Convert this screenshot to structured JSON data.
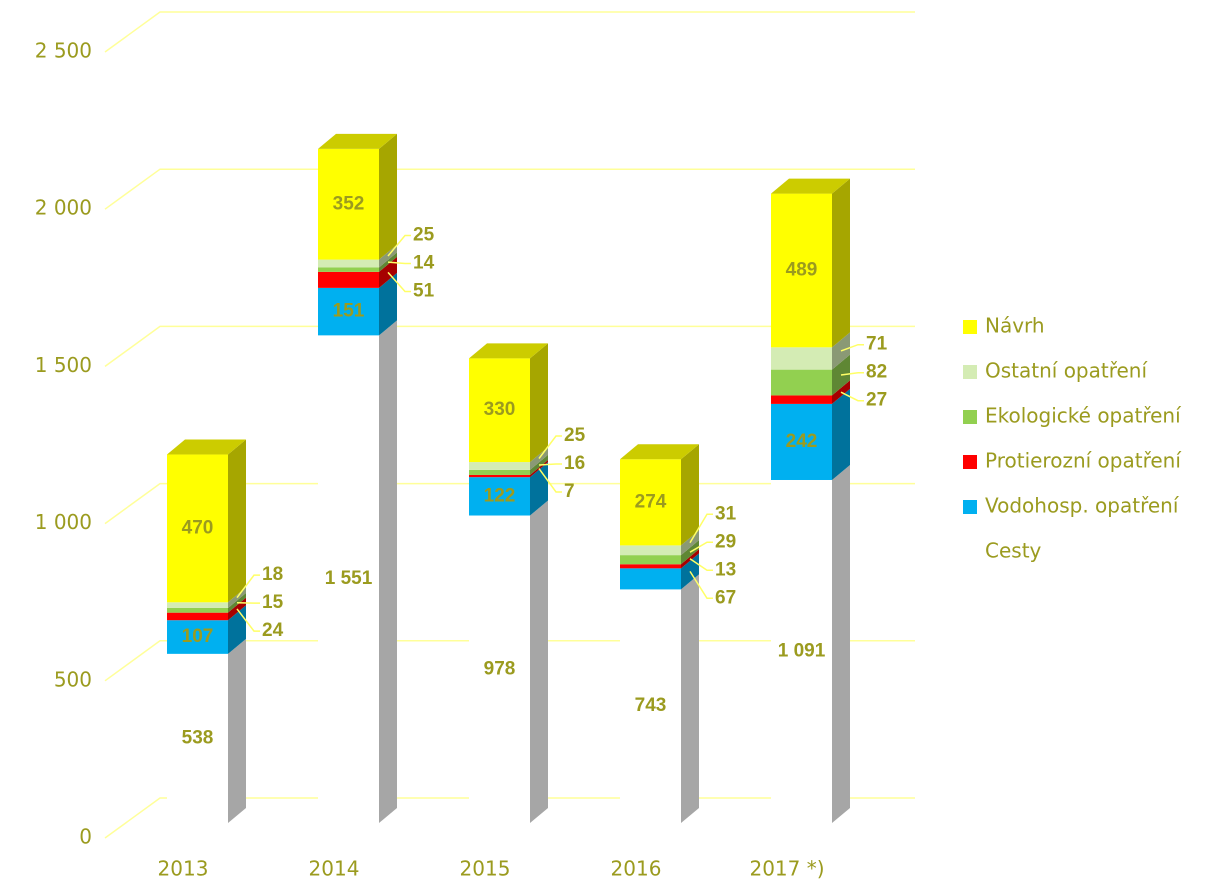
{
  "chart_data": {
    "type": "bar3d_stacked",
    "categories": [
      "2013",
      "2014",
      "2015",
      "2016",
      "2017 *)"
    ],
    "series": [
      {
        "name": "Cesty",
        "color": "#ffffff",
        "values": [
          538,
          1551,
          978,
          743,
          1091
        ],
        "value_labels": [
          "538",
          "1 551",
          "978",
          "743",
          "1 091"
        ]
      },
      {
        "name": "Vodohosp. opatření",
        "color": "#00b0f0",
        "values": [
          107,
          151,
          122,
          67,
          242
        ]
      },
      {
        "name": "Protierozní opatření",
        "color": "#ff0000",
        "values": [
          24,
          51,
          7,
          13,
          27
        ]
      },
      {
        "name": "Ekologické opatření",
        "color": "#92d050",
        "values": [
          15,
          14,
          16,
          29,
          82
        ]
      },
      {
        "name": "Ostatní opatření",
        "color": "#d4ecb4",
        "values": [
          18,
          25,
          25,
          31,
          71
        ]
      },
      {
        "name": "Návrh",
        "color": "#ffff00",
        "values": [
          470,
          352,
          330,
          274,
          489
        ]
      }
    ],
    "ylim": [
      0,
      2500
    ],
    "yticks": [
      0,
      500,
      {
        "value": 1000,
        "label": "1 000"
      },
      {
        "value": 1500,
        "label": "1 500"
      },
      {
        "value": 2000,
        "label": "2 000"
      },
      {
        "value": 2500,
        "label": "2 500"
      }
    ],
    "grid": true
  }
}
